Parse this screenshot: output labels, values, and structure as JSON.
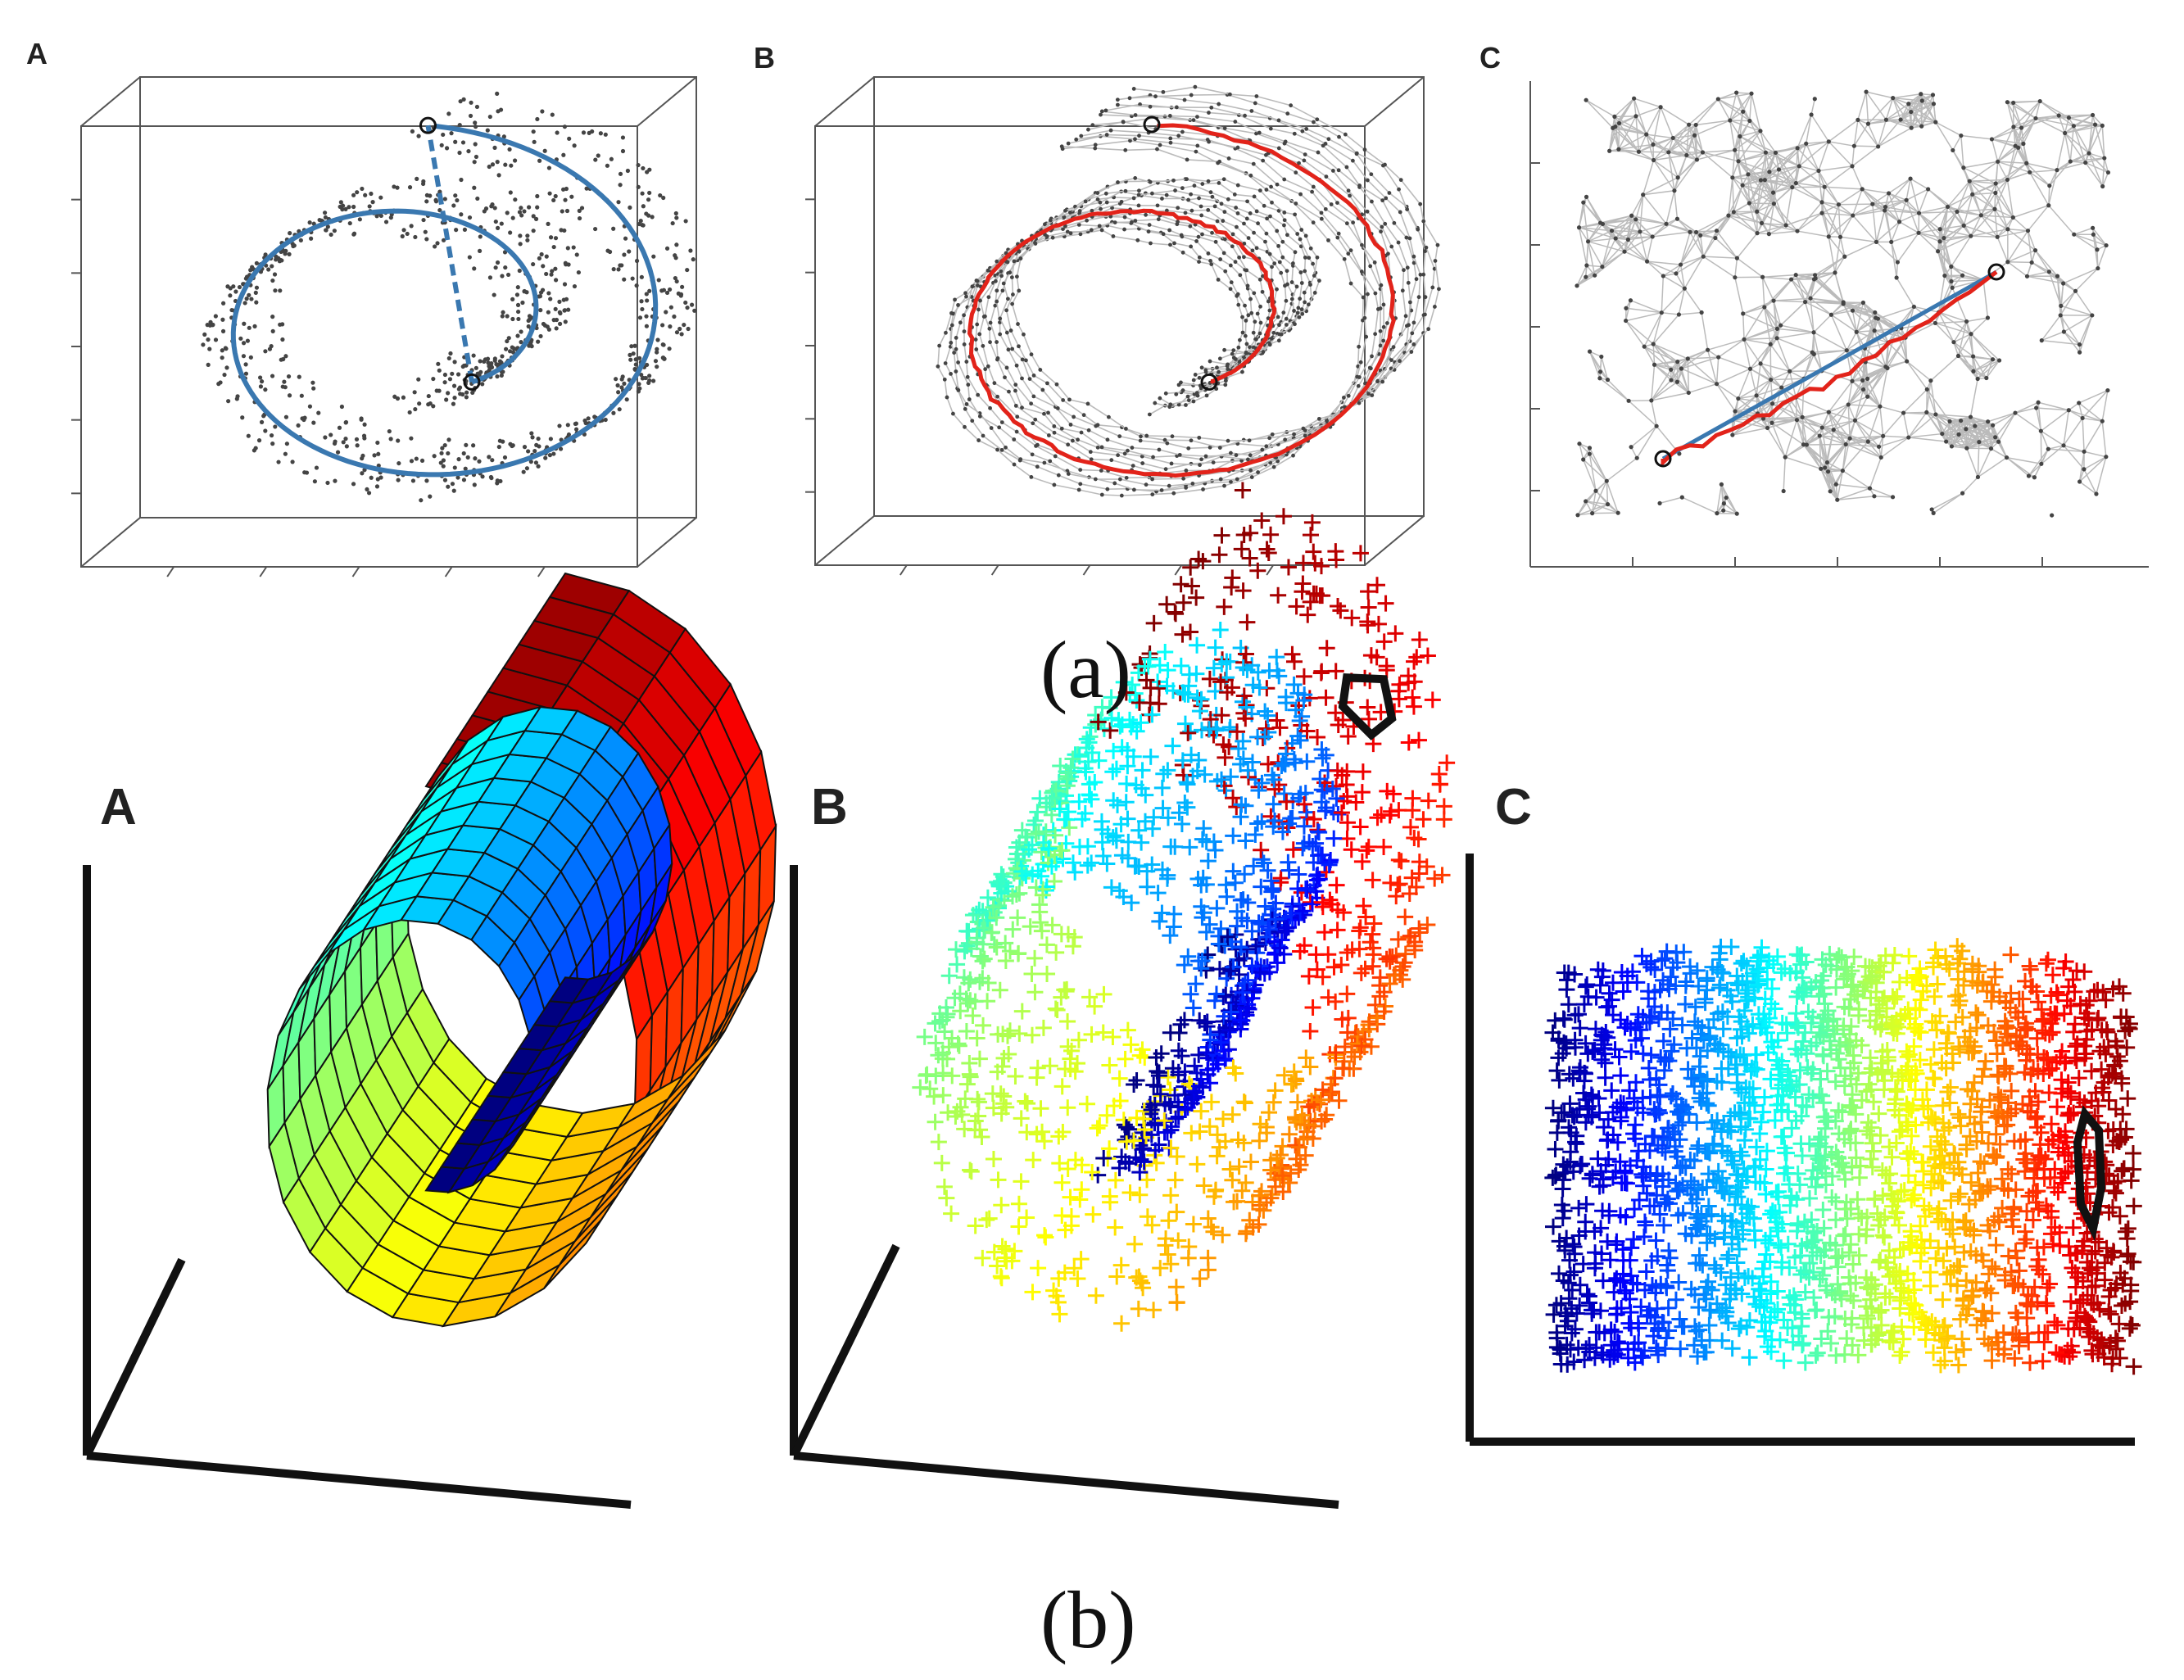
{
  "figure_a": {
    "caption": "(a)",
    "panels": [
      {
        "label": "A",
        "content": "Swiss roll point cloud with geodesic (solid) vs Euclidean (dashed) distance"
      },
      {
        "label": "B",
        "content": "Neighborhood graph with shortest path"
      },
      {
        "label": "C",
        "content": "2D embedding with path and straight line"
      }
    ],
    "colors": {
      "points": "#444444",
      "euclid_line": "#3a78b0",
      "graph_path": "#e2231a",
      "edges": "#bbbbbb"
    }
  },
  "figure_b": {
    "caption": "(b)",
    "panels": [
      {
        "label": "A",
        "content": "Swiss roll surface colored by position"
      },
      {
        "label": "B",
        "content": "Sampled points on swiss roll"
      },
      {
        "label": "C",
        "content": "Unrolled embedding"
      }
    ]
  }
}
